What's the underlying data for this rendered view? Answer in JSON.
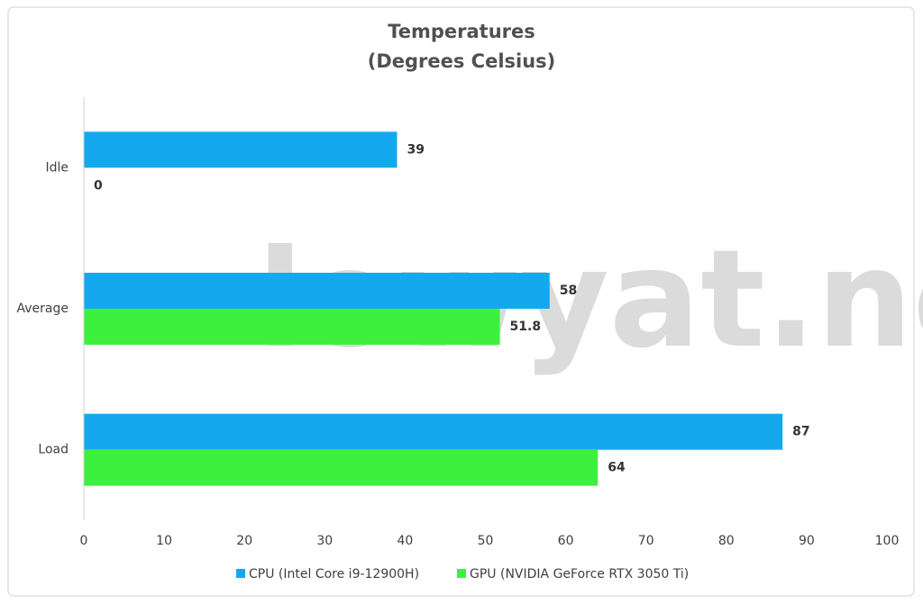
{
  "chart_data": {
    "type": "hbar",
    "title": "Temperatures",
    "subtitle": "(Degrees Celsius)",
    "categories": [
      "Idle",
      "Average",
      "Load"
    ],
    "series": [
      {
        "name": "CPU (Intel Core i9-12900H)",
        "color": "#14a9ef",
        "values": [
          39,
          58,
          87
        ]
      },
      {
        "name": "GPU (NVIDIA GeForce RTX 3050 Ti)",
        "color": "#3ef03e",
        "values": [
          0,
          51.8,
          64
        ]
      }
    ],
    "xlim": [
      0,
      100
    ],
    "xticks": [
      0,
      10,
      20,
      30,
      40,
      50,
      60,
      70,
      80,
      90,
      100
    ],
    "grid": false,
    "legend": "bottom",
    "watermark": "lowyat.net"
  }
}
